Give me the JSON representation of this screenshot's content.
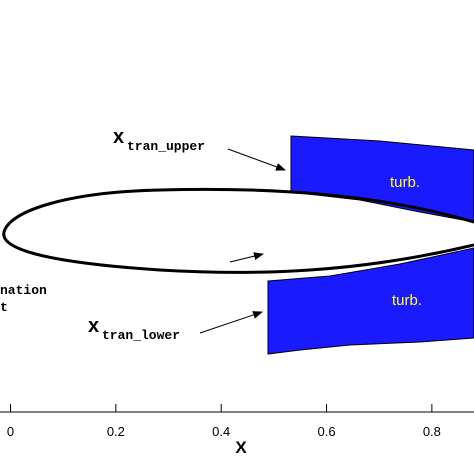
{
  "labels": {
    "upper_var": "x",
    "upper_sub": "tran_upper",
    "lower_var": "x",
    "lower_sub": "tran_lower",
    "upper_region": "turb.",
    "lower_region": "turb.",
    "stagnation_line1": "nation",
    "stagnation_line2": "t"
  },
  "axis": {
    "title": "X",
    "lim": [
      -0.02,
      0.88
    ],
    "ticks": [
      0,
      0.2,
      0.4,
      0.6,
      0.8
    ]
  }
}
